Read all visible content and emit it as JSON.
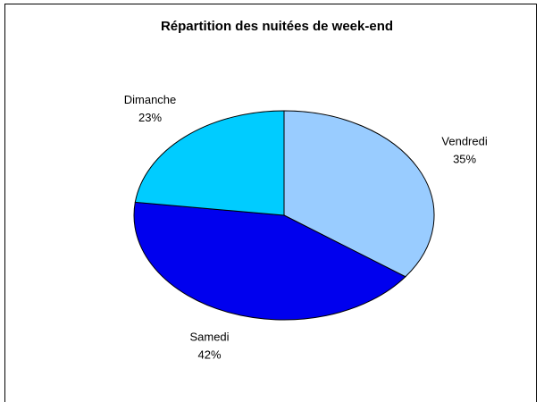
{
  "chart_data": {
    "type": "pie",
    "title": "Répartition des nuitées de week-end",
    "categories": [
      "Vendredi",
      "Samedi",
      "Dimanche"
    ],
    "values": [
      35,
      42,
      23
    ],
    "value_labels": [
      "35%",
      "42%",
      "23%"
    ],
    "colors": [
      "#99ccff",
      "#0000ee",
      "#00ccff"
    ]
  }
}
